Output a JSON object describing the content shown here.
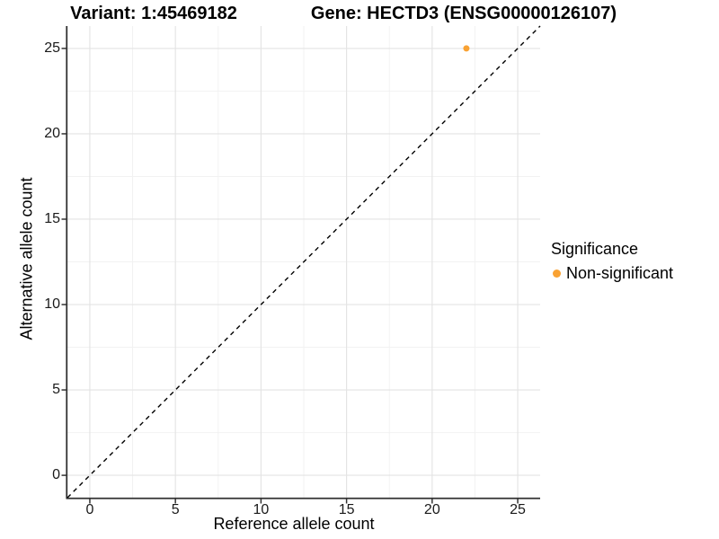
{
  "header": {
    "variant_title": "Variant: 1:45469182",
    "gene_title": "Gene: HECTD3 (ENSG00000126107)"
  },
  "axes": {
    "x": {
      "label": "Reference allele count",
      "ticks": [
        0,
        5,
        10,
        15,
        20,
        25
      ]
    },
    "y": {
      "label": "Alternative allele count",
      "ticks": [
        0,
        5,
        10,
        15,
        20,
        25
      ]
    }
  },
  "legend": {
    "title": "Significance",
    "items": [
      {
        "label": "Non-significant",
        "color": "#F9A233"
      }
    ]
  },
  "chart_data": {
    "type": "scatter",
    "title_left": "Variant: 1:45469182",
    "title_right": "Gene: HECTD3 (ENSG00000126107)",
    "xlabel": "Reference allele count",
    "ylabel": "Alternative allele count",
    "xlim": [
      -1.31,
      26.31
    ],
    "ylim": [
      -1.31,
      26.31
    ],
    "x_ticks": [
      0,
      5,
      10,
      15,
      20,
      25
    ],
    "y_ticks": [
      0,
      5,
      10,
      15,
      20,
      25
    ],
    "series": [
      {
        "name": "Non-significant",
        "color": "#F9A233",
        "points": [
          {
            "x": 22,
            "y": 25
          }
        ]
      }
    ],
    "reference_line": {
      "type": "identity",
      "from": -1.31,
      "to": 26.31,
      "style": "dashed",
      "color": "#000000"
    },
    "grid": {
      "on": true,
      "major_color": "#E3E3E3",
      "minor_color": "#F2F2F2"
    },
    "style": {
      "axis_line_color": "#333333",
      "point_radius": 3.5,
      "background": "#FFFFFF"
    },
    "legend_position": "right"
  }
}
